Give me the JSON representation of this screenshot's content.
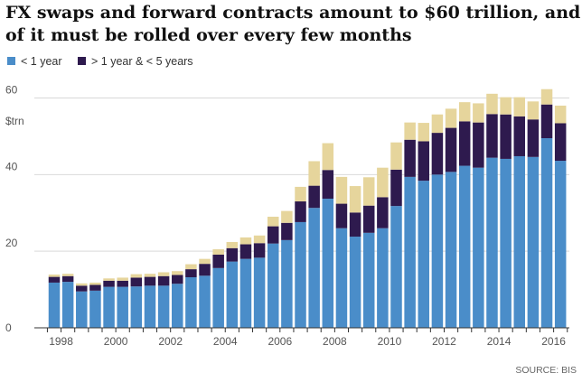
{
  "chart_data": {
    "type": "bar",
    "stacked": true,
    "title_line1": "FX swaps and forward contracts amount to $60 trillion, and most",
    "title_line2": "of it must be rolled over every few months",
    "y_unit": "$trn",
    "source": "SOURCE: BIS",
    "ylim": [
      0,
      65
    ],
    "y_ticks": [
      0,
      20,
      40,
      60
    ],
    "x_tick_labels": [
      "1998",
      "2000",
      "2002",
      "2004",
      "2006",
      "2008",
      "2010",
      "2012",
      "2014",
      "2016"
    ],
    "grid": true,
    "legend_position": "top-left",
    "colors": {
      "lt1": "#4a8dc9",
      "mid": "#2e1a4e",
      "gt5": "#e6d59c"
    },
    "categories": [
      "H1 1998",
      "H2 1998",
      "H1 1999",
      "H2 1999",
      "H1 2000",
      "H2 2000",
      "H1 2001",
      "H2 2001",
      "H1 2002",
      "H2 2002",
      "H1 2003",
      "H2 2003",
      "H1 2004",
      "H2 2004",
      "H1 2005",
      "H2 2005",
      "H1 2006",
      "H2 2006",
      "H1 2007",
      "H2 2007",
      "H1 2008",
      "H2 2008",
      "H1 2009",
      "H2 2009",
      "H1 2010",
      "H2 2010",
      "H1 2011",
      "H2 2011",
      "H1 2012",
      "H2 2012",
      "H1 2013",
      "H2 2013",
      "H1 2014",
      "H2 2014",
      "H1 2015",
      "H2 2015",
      "H1 2016",
      "H2 2016"
    ],
    "series": [
      {
        "name": "< 1 year",
        "values": [
          11.8,
          12.0,
          9.5,
          9.7,
          10.7,
          10.7,
          10.8,
          11.0,
          11.0,
          11.5,
          13.2,
          13.6,
          15.6,
          17.3,
          18.0,
          18.3,
          22.0,
          22.9,
          27.6,
          31.3,
          33.7,
          26.0,
          23.8,
          24.8,
          26.0,
          31.8,
          39.4,
          38.4,
          40.0,
          40.7,
          42.3,
          41.8,
          44.4,
          44.1,
          44.8,
          44.6,
          49.5,
          43.6
        ]
      },
      {
        "name": "> 1 year & < 5 years",
        "values": [
          1.5,
          1.5,
          1.5,
          1.5,
          1.6,
          1.6,
          2.3,
          2.3,
          2.5,
          2.3,
          2.1,
          3.1,
          3.5,
          3.5,
          3.8,
          3.8,
          4.5,
          4.5,
          5.4,
          5.8,
          7.5,
          6.4,
          6.3,
          7.1,
          8.1,
          9.5,
          9.7,
          10.3,
          10.9,
          11.5,
          11.6,
          11.8,
          11.4,
          11.6,
          10.4,
          9.8,
          8.8,
          9.8
        ]
      },
      {
        "name": "> 5 years",
        "values": [
          0.6,
          0.6,
          0.6,
          0.6,
          0.6,
          0.8,
          0.9,
          0.8,
          1.0,
          1.0,
          1.3,
          1.3,
          1.4,
          1.6,
          1.8,
          2.0,
          2.5,
          3.1,
          3.8,
          6.4,
          7.0,
          7.0,
          6.9,
          7.4,
          7.7,
          7.1,
          4.5,
          4.8,
          4.8,
          5.0,
          5.0,
          5.0,
          5.3,
          4.5,
          5.0,
          4.7,
          4.0,
          4.6
        ]
      }
    ]
  }
}
